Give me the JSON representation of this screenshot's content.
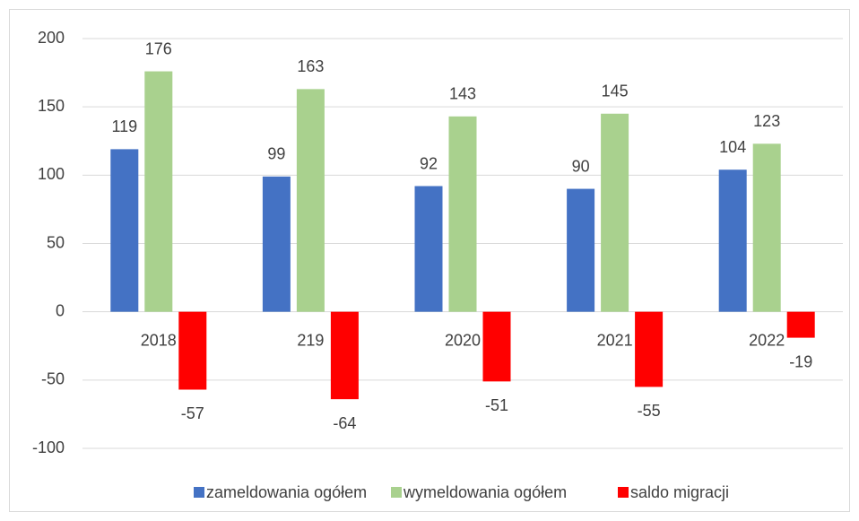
{
  "chart_data": {
    "type": "bar",
    "categories": [
      "2018",
      "219",
      "2020",
      "2021",
      "2022"
    ],
    "series": [
      {
        "name": "zameldowania ogółem",
        "color": "#4472c4",
        "values": [
          119,
          99,
          92,
          90,
          104
        ]
      },
      {
        "name": "wymeldowania ogółem",
        "color": "#a9d18e",
        "values": [
          176,
          163,
          143,
          145,
          123
        ]
      },
      {
        "name": "saldo migracji",
        "color": "#ff0000",
        "values": [
          -57,
          -64,
          -51,
          -55,
          -19
        ]
      }
    ],
    "ylim": [
      -100,
      200
    ],
    "yticks": [
      -100,
      -50,
      0,
      50,
      100,
      150,
      200
    ],
    "grid": true,
    "legend": "bottom"
  }
}
